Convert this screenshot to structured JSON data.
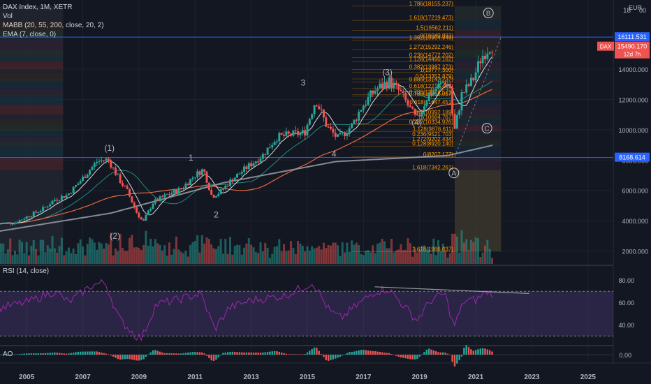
{
  "header": {
    "symbol_line": "DAX Index, 1M, XETR",
    "vol_label": "Vol",
    "mabb_label": "MABB (20, 55, 200, close, 20, 2)",
    "ema_label": "EMA (7, close, 0)",
    "currency": "EUR",
    "top_scale": "18",
    "top_scale_tail": "00"
  },
  "colors": {
    "background": "#131722",
    "up": "#26a69a",
    "down": "#ef5350",
    "grid": "#1e222d",
    "text": "#b2b5be",
    "rsi_line": "#9c27b0",
    "rsi_band": "#7e57c2",
    "level_line": "#2962ff",
    "fib_text": "#ff9800"
  },
  "price_badges": {
    "top_level": "16111.531",
    "dax_symbol": "DAX",
    "last_price": "15490.170",
    "countdown": "12d 7h",
    "bottom_level": "8168.614"
  },
  "chart_data": [
    {
      "type": "candlestick",
      "title": "DAX Index, 1M, XETR",
      "x_ticks": [
        "2005",
        "2007",
        "2009",
        "2011",
        "2013",
        "2015",
        "2017",
        "2019",
        "2021",
        "2023",
        "2025"
      ],
      "x_range": [
        2004.05,
        2025.9
      ],
      "y_ticks": [
        2000,
        4000,
        6000,
        8000,
        10000,
        12000,
        14000
      ],
      "y_tick_labels": [
        "2000.000",
        "4000.000",
        "6000.000",
        "8000.000",
        "10000.000",
        "12000.000",
        "14000.000"
      ],
      "y_range": [
        1150,
        18100
      ],
      "close_anchors": [
        {
          "x": 2004.0,
          "y": 3800
        },
        {
          "x": 2004.6,
          "y": 3900
        },
        {
          "x": 2005.0,
          "y": 4250
        },
        {
          "x": 2005.6,
          "y": 4800
        },
        {
          "x": 2006.0,
          "y": 5400
        },
        {
          "x": 2006.45,
          "y": 5700
        },
        {
          "x": 2006.9,
          "y": 6600
        },
        {
          "x": 2007.5,
          "y": 7900
        },
        {
          "x": 2007.9,
          "y": 8050
        },
        {
          "x": 2008.3,
          "y": 6700
        },
        {
          "x": 2008.6,
          "y": 5900
        },
        {
          "x": 2008.9,
          "y": 4600
        },
        {
          "x": 2009.15,
          "y": 3900
        },
        {
          "x": 2009.5,
          "y": 5200
        },
        {
          "x": 2010.0,
          "y": 5700
        },
        {
          "x": 2010.5,
          "y": 6100
        },
        {
          "x": 2011.0,
          "y": 7000
        },
        {
          "x": 2011.3,
          "y": 7400
        },
        {
          "x": 2011.6,
          "y": 5600
        },
        {
          "x": 2011.9,
          "y": 5900
        },
        {
          "x": 2012.3,
          "y": 6700
        },
        {
          "x": 2012.9,
          "y": 7600
        },
        {
          "x": 2013.4,
          "y": 8300
        },
        {
          "x": 2013.9,
          "y": 9500
        },
        {
          "x": 2014.5,
          "y": 9700
        },
        {
          "x": 2014.9,
          "y": 9800
        },
        {
          "x": 2015.3,
          "y": 12000
        },
        {
          "x": 2015.7,
          "y": 10200
        },
        {
          "x": 2016.1,
          "y": 9400
        },
        {
          "x": 2016.6,
          "y": 10300
        },
        {
          "x": 2016.9,
          "y": 11400
        },
        {
          "x": 2017.4,
          "y": 12600
        },
        {
          "x": 2017.9,
          "y": 13200
        },
        {
          "x": 2018.3,
          "y": 12500
        },
        {
          "x": 2018.9,
          "y": 10600
        },
        {
          "x": 2019.3,
          "y": 12300
        },
        {
          "x": 2019.9,
          "y": 13200
        },
        {
          "x": 2020.1,
          "y": 12800
        },
        {
          "x": 2020.22,
          "y": 9700
        },
        {
          "x": 2020.5,
          "y": 12300
        },
        {
          "x": 2020.9,
          "y": 13300
        },
        {
          "x": 2021.2,
          "y": 14800
        },
        {
          "x": 2021.5,
          "y": 15500
        },
        {
          "x": 2021.65,
          "y": 15600
        }
      ],
      "ma_200_anchors": [
        {
          "x": 2004.0,
          "y": 3300
        },
        {
          "x": 2008.0,
          "y": 4500
        },
        {
          "x": 2012.0,
          "y": 6500
        },
        {
          "x": 2016.0,
          "y": 7900
        },
        {
          "x": 2020.0,
          "y": 8300
        },
        {
          "x": 2021.65,
          "y": 9000
        }
      ],
      "fib_levels": [
        {
          "label": "1.786(18155.237)",
          "value": 18155
        },
        {
          "label": "1.618(17219.473)",
          "value": 17219
        },
        {
          "label": "1.5(16562.211)",
          "value": 16562
        },
        {
          "label": "0(16040.991)",
          "value": 16041
        },
        {
          "label": "1.382(15904.948)",
          "value": 15905
        },
        {
          "label": "1.272(15292.246)",
          "value": 15292
        },
        {
          "label": "0.236(14772.202)",
          "value": 14772
        },
        {
          "label": "1.128(14490.162)",
          "value": 14490
        },
        {
          "label": "0.382(13987.273)",
          "value": 13987
        },
        {
          "label": "1(13777.300)",
          "value": 13777
        },
        {
          "label": "0.5(13352.879)",
          "value": 13353
        },
        {
          "label": "0.886(13142.237)",
          "value": 13142
        },
        {
          "label": "0.618(12718.485)",
          "value": 12718
        },
        {
          "label": "0.786(12322.571)",
          "value": 12323
        },
        {
          "label": "0.786(12215.097)",
          "value": 12215
        },
        {
          "label": "0.618(11647.451)",
          "value": 11647
        },
        {
          "label": "0.5(10992.189)",
          "value": 10992
        },
        {
          "label": "1(10664.767)",
          "value": 10665
        },
        {
          "label": "0.382(10334.926)",
          "value": 10335
        },
        {
          "label": "1.128(9876.611)",
          "value": 9877
        },
        {
          "label": "0.236(9521.703)",
          "value": 9522
        },
        {
          "label": "1.272(9202.434)",
          "value": 9202
        },
        {
          "label": "0.128(8920.140)",
          "value": 8920
        },
        {
          "label": "0(8207.177)",
          "value": 8207
        },
        {
          "label": "1.618(7342.261)",
          "value": 7342
        },
        {
          "label": "2.618(1966.037)",
          "value": 1966
        }
      ],
      "annotations": [
        "(1)",
        "(2)",
        "3",
        "1",
        "2",
        "4",
        "(3)",
        "(4)",
        "B",
        "C",
        "A"
      ],
      "horizontal_levels": [
        16111.531,
        8168.614
      ]
    },
    {
      "type": "line",
      "title": "RSI (14, close)",
      "y_ticks": [
        40,
        60,
        80
      ],
      "y_tick_labels": [
        "40.00",
        "60.00",
        "80.00"
      ],
      "y_range": [
        22,
        92
      ],
      "band": [
        30,
        70
      ],
      "anchors": [
        {
          "x": 2004.0,
          "y": 55
        },
        {
          "x": 2005.0,
          "y": 60
        },
        {
          "x": 2006.0,
          "y": 70
        },
        {
          "x": 2006.5,
          "y": 60
        },
        {
          "x": 2007.3,
          "y": 75
        },
        {
          "x": 2007.8,
          "y": 78
        },
        {
          "x": 2008.3,
          "y": 45
        },
        {
          "x": 2008.9,
          "y": 30
        },
        {
          "x": 2009.1,
          "y": 28
        },
        {
          "x": 2009.6,
          "y": 58
        },
        {
          "x": 2010.3,
          "y": 62
        },
        {
          "x": 2011.2,
          "y": 68
        },
        {
          "x": 2011.7,
          "y": 36
        },
        {
          "x": 2012.2,
          "y": 55
        },
        {
          "x": 2013.0,
          "y": 62
        },
        {
          "x": 2014.2,
          "y": 66
        },
        {
          "x": 2015.2,
          "y": 78
        },
        {
          "x": 2015.8,
          "y": 52
        },
        {
          "x": 2016.2,
          "y": 46
        },
        {
          "x": 2016.9,
          "y": 60
        },
        {
          "x": 2017.4,
          "y": 70
        },
        {
          "x": 2017.9,
          "y": 72
        },
        {
          "x": 2018.9,
          "y": 44
        },
        {
          "x": 2019.4,
          "y": 62
        },
        {
          "x": 2019.9,
          "y": 68
        },
        {
          "x": 2020.22,
          "y": 38
        },
        {
          "x": 2020.6,
          "y": 62
        },
        {
          "x": 2021.0,
          "y": 62
        },
        {
          "x": 2021.4,
          "y": 70
        },
        {
          "x": 2021.65,
          "y": 67
        }
      ]
    },
    {
      "type": "bar",
      "title": "AO",
      "y_ticks": [
        0
      ],
      "y_tick_labels": [
        "0.00"
      ],
      "y_range": [
        -1500,
        1800
      ]
    }
  ]
}
